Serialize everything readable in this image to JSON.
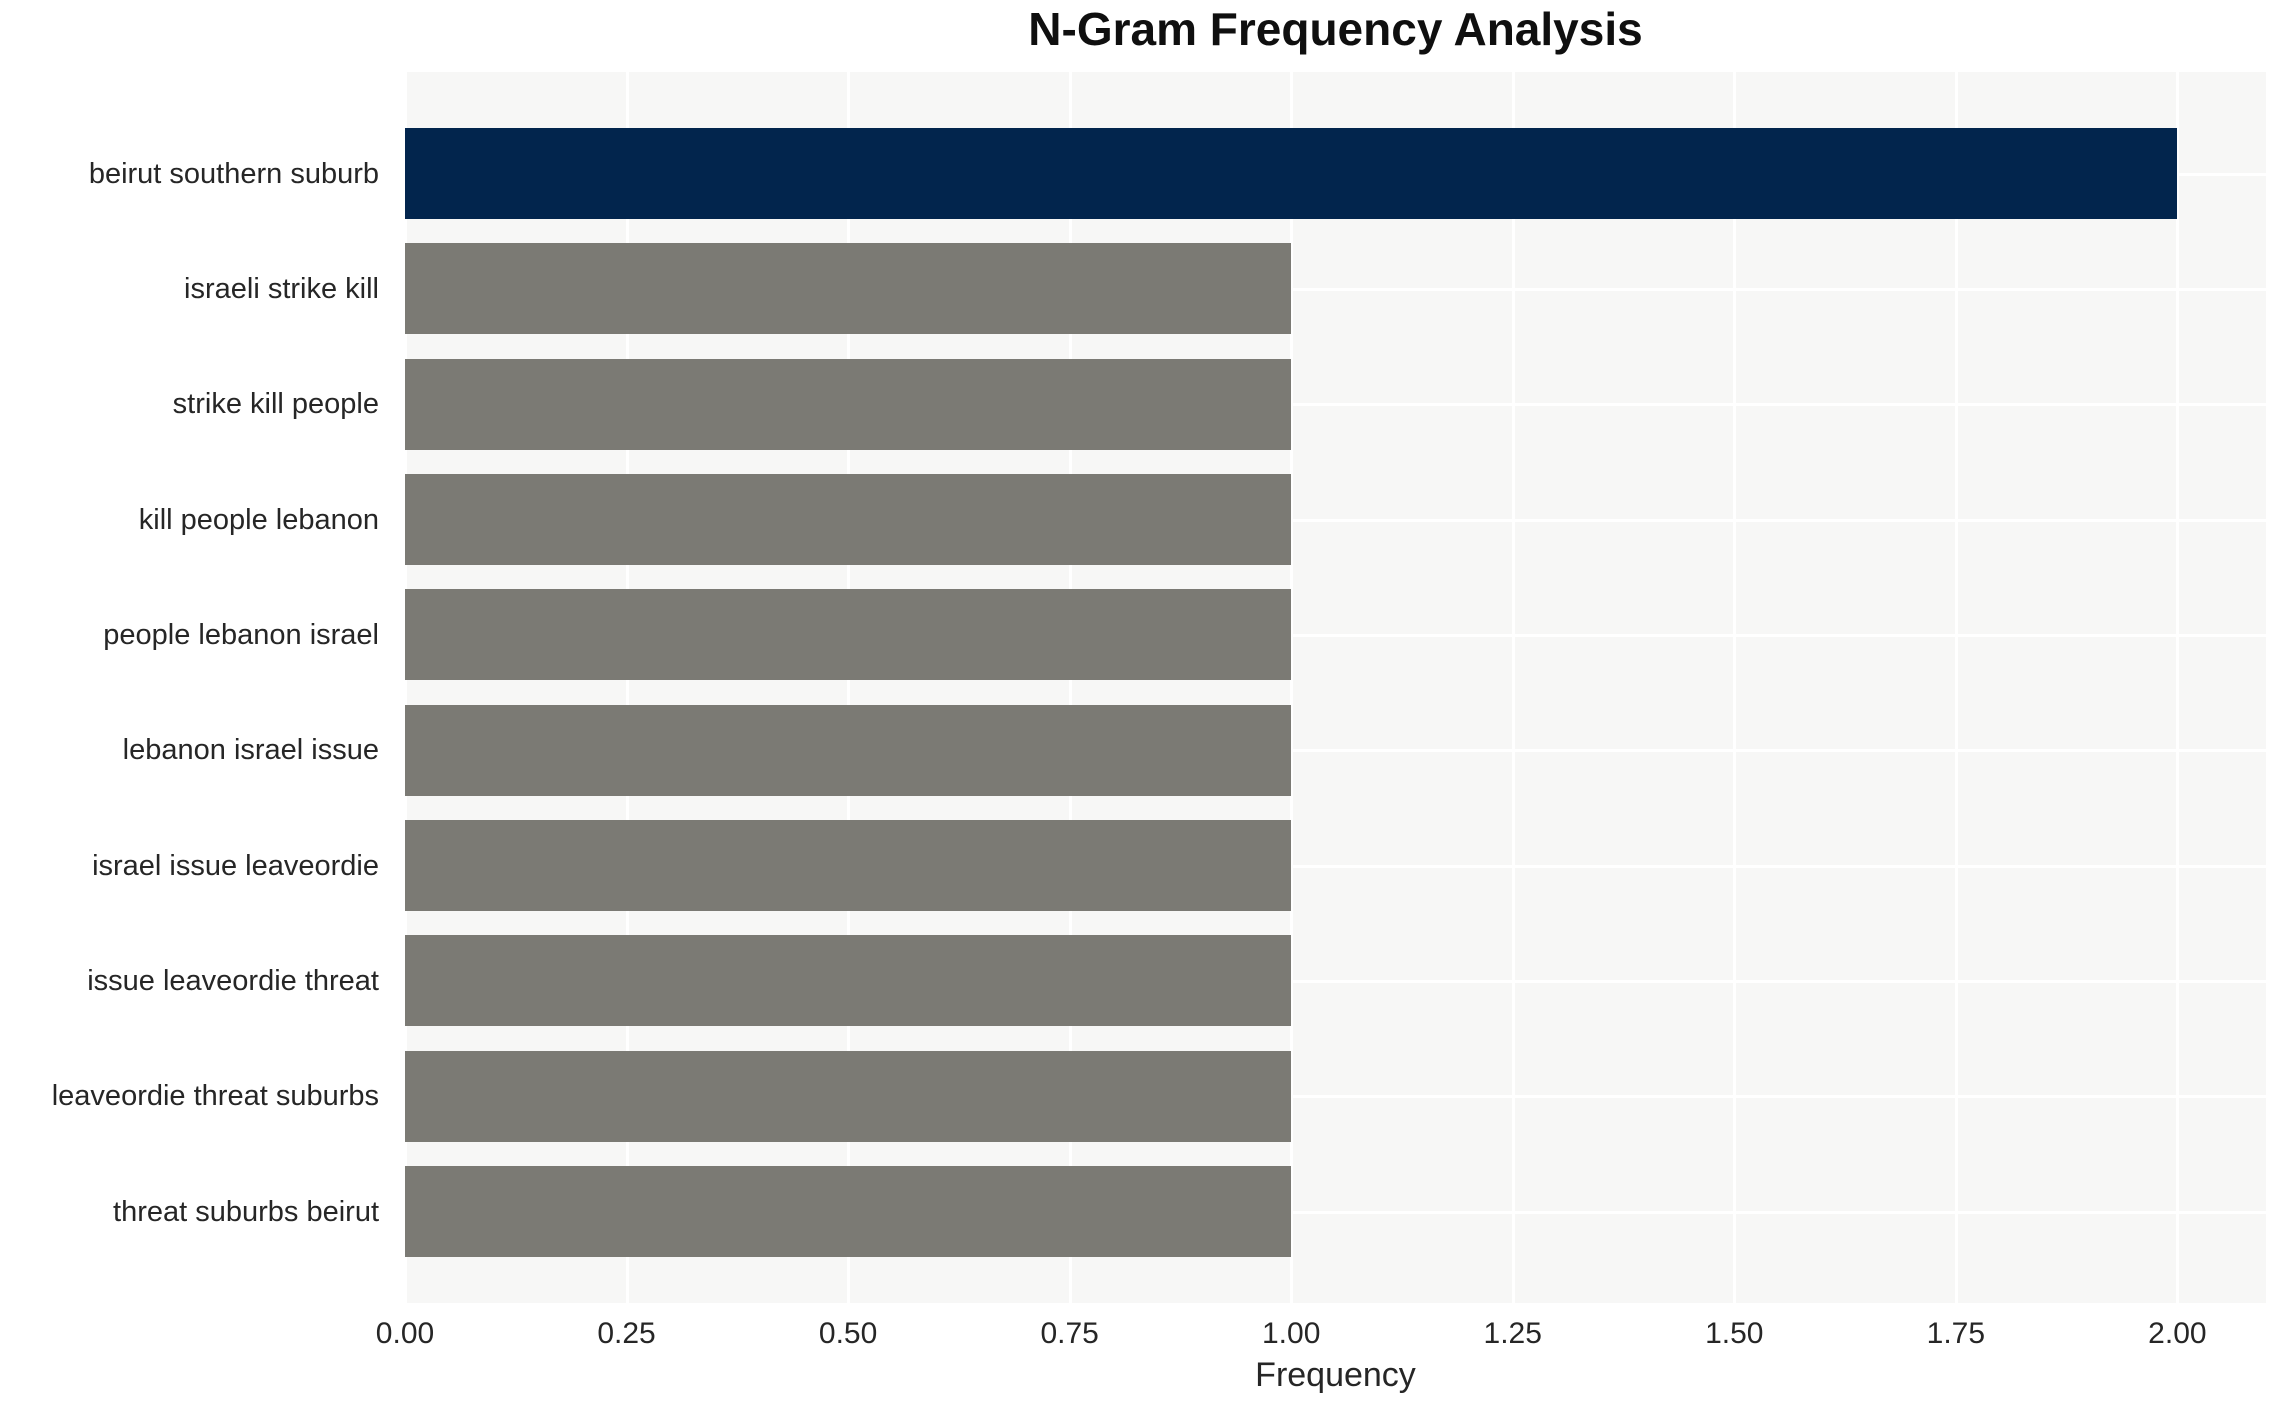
{
  "chart_data": {
    "type": "bar",
    "orientation": "horizontal",
    "title": "N-Gram Frequency Analysis",
    "xlabel": "Frequency",
    "ylabel": "",
    "categories": [
      "beirut southern suburb",
      "israeli strike kill",
      "strike kill people",
      "kill people lebanon",
      "people lebanon israel",
      "lebanon israel issue",
      "israel issue leaveordie",
      "issue leaveordie threat",
      "leaveordie threat suburbs",
      "threat suburbs beirut"
    ],
    "values": [
      2,
      1,
      1,
      1,
      1,
      1,
      1,
      1,
      1,
      1
    ],
    "bar_colors": [
      "#02254d",
      "#7b7a74",
      "#7b7a74",
      "#7b7a74",
      "#7b7a74",
      "#7b7a74",
      "#7b7a74",
      "#7b7a74",
      "#7b7a74",
      "#7b7a74"
    ],
    "xlim": [
      0,
      2.1
    ],
    "xticks": [
      0,
      0.25,
      0.5,
      0.75,
      1.0,
      1.25,
      1.5,
      1.75,
      2.0
    ],
    "xtick_labels": [
      "0.00",
      "0.25",
      "0.50",
      "0.75",
      "1.00",
      "1.25",
      "1.50",
      "1.75",
      "2.00"
    ],
    "grid": true,
    "legend": false
  },
  "style": {
    "highlight_bar_color": "#02254d",
    "default_bar_color": "#7b7a74",
    "plot_background": "#f7f7f6",
    "grid_color": "#ffffff",
    "tick_text_color": "#262626",
    "title_color": "#0f0f0f"
  }
}
